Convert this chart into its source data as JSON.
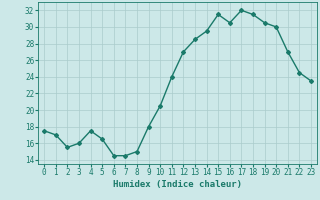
{
  "title": "",
  "xlabel": "Humidex (Indice chaleur)",
  "x": [
    0,
    1,
    2,
    3,
    4,
    5,
    6,
    7,
    8,
    9,
    10,
    11,
    12,
    13,
    14,
    15,
    16,
    17,
    18,
    19,
    20,
    21,
    22,
    23
  ],
  "y": [
    17.5,
    17.0,
    15.5,
    16.0,
    17.5,
    16.5,
    14.5,
    14.5,
    15.0,
    18.0,
    20.5,
    24.0,
    27.0,
    28.5,
    29.5,
    31.5,
    30.5,
    32.0,
    31.5,
    30.5,
    30.0,
    27.0,
    24.5,
    23.5
  ],
  "line_color": "#1a7a6a",
  "marker": "D",
  "marker_size": 2.0,
  "bg_color": "#cce8e8",
  "grid_color": "#aacccc",
  "ylim": [
    13.5,
    33
  ],
  "yticks": [
    14,
    16,
    18,
    20,
    22,
    24,
    26,
    28,
    30,
    32
  ],
  "xlim": [
    -0.5,
    23.5
  ],
  "xticks": [
    0,
    1,
    2,
    3,
    4,
    5,
    6,
    7,
    8,
    9,
    10,
    11,
    12,
    13,
    14,
    15,
    16,
    17,
    18,
    19,
    20,
    21,
    22,
    23
  ],
  "tick_fontsize": 5.5,
  "label_fontsize": 6.5,
  "line_width": 1.0
}
